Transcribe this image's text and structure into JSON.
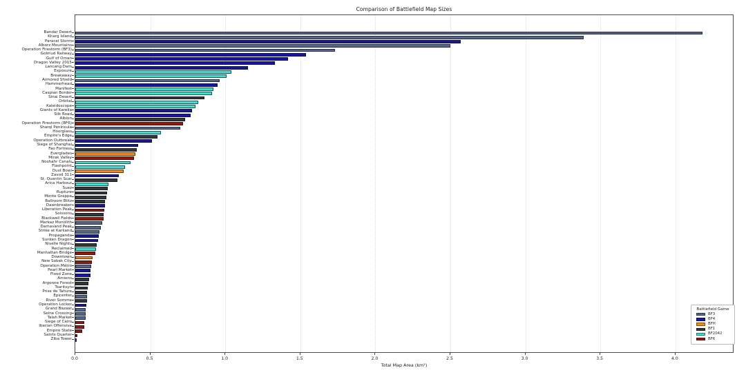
{
  "title": "Comparison of Battlefield Map Sizes",
  "game_colors": {
    "BF3": "#56688a",
    "BF4": "#17179c",
    "BFH": "#ef8b17",
    "BF1": "#32383a",
    "BF2042": "#40dfcd",
    "BF6": "#8e1c10"
  },
  "chart_data": {
    "type": "bar",
    "orientation": "horizontal",
    "title": "Comparison of Battlefield Map Sizes",
    "xlabel": "Total Map Area (km²)",
    "ylabel": "",
    "xlim": [
      0.0,
      4.39
    ],
    "xticks": [
      0.0,
      0.5,
      1.0,
      1.5,
      2.0,
      2.5,
      3.0,
      3.5,
      4.0
    ],
    "grid": "vertical dotted",
    "legend": {
      "title": "Battlefield Game",
      "position": "lower right",
      "entries": [
        {
          "label": "BF3",
          "color": "#56688a"
        },
        {
          "label": "BF4",
          "color": "#17179c"
        },
        {
          "label": "BFH",
          "color": "#ef8b17"
        },
        {
          "label": "BF1",
          "color": "#32383a"
        },
        {
          "label": "BF2042",
          "color": "#40dfcd"
        },
        {
          "label": "BF6",
          "color": "#8e1c10"
        }
      ]
    },
    "bars": [
      {
        "label": "Bandar Desert",
        "game": "BF3",
        "value": 4.18
      },
      {
        "label": "Kharg Island",
        "game": "BF3",
        "value": 3.39
      },
      {
        "label": "Paracel Storm",
        "game": "BF4",
        "value": 2.57
      },
      {
        "label": "Alborz Mountains",
        "game": "BF3",
        "value": 2.5
      },
      {
        "label": "Operation Firestorm (BF3)",
        "game": "BF3",
        "value": 1.73
      },
      {
        "label": "Golmud Railway",
        "game": "BF4",
        "value": 1.54
      },
      {
        "label": "Gulf of Oman",
        "game": "BF4",
        "value": 1.42
      },
      {
        "label": "Dragon Valley 2015",
        "game": "BF4",
        "value": 1.33
      },
      {
        "label": "Lancang Dam",
        "game": "BF4",
        "value": 1.15
      },
      {
        "label": "Exposure",
        "game": "BF2042",
        "value": 1.04
      },
      {
        "label": "Breakaway",
        "game": "BF2042",
        "value": 1.01
      },
      {
        "label": "Armored Shield",
        "game": "BF3",
        "value": 0.96
      },
      {
        "label": "Hammerhead",
        "game": "BF4",
        "value": 0.95
      },
      {
        "label": "Manifest",
        "game": "BF2042",
        "value": 0.92
      },
      {
        "label": "Caspian Border",
        "game": "BF2042",
        "value": 0.91
      },
      {
        "label": "Sinai Desert",
        "game": "BF1",
        "value": 0.86
      },
      {
        "label": "Orbital",
        "game": "BF2042",
        "value": 0.82
      },
      {
        "label": "Kaleidoscope",
        "game": "BF2042",
        "value": 0.8
      },
      {
        "label": "Giants of Karelia",
        "game": "BF4",
        "value": 0.78
      },
      {
        "label": "Silk Road",
        "game": "BF4",
        "value": 0.77
      },
      {
        "label": "Albion",
        "game": "BF1",
        "value": 0.73
      },
      {
        "label": "Operation Firestorm (BF6)",
        "game": "BF6",
        "value": 0.72
      },
      {
        "label": "Sharqi Peninsula",
        "game": "BF3",
        "value": 0.7
      },
      {
        "label": "Hourglass",
        "game": "BF2042",
        "value": 0.57
      },
      {
        "label": "Empire's Edge",
        "game": "BF1",
        "value": 0.55
      },
      {
        "label": "Operation Outbreak",
        "game": "BF4",
        "value": 0.51
      },
      {
        "label": "Siege of Shanghai",
        "game": "BF4",
        "value": 0.42
      },
      {
        "label": "Fao Fortress",
        "game": "BF1",
        "value": 0.41
      },
      {
        "label": "Everglades",
        "game": "BFH",
        "value": 0.4
      },
      {
        "label": "Mirak Valley",
        "game": "BF6",
        "value": 0.39
      },
      {
        "label": "Noshahr Canals",
        "game": "BF2042",
        "value": 0.37
      },
      {
        "label": "Flashpoint",
        "game": "BF2042",
        "value": 0.33
      },
      {
        "label": "Dust Bowl",
        "game": "BFH",
        "value": 0.32
      },
      {
        "label": "Zavod 311",
        "game": "BF4",
        "value": 0.29
      },
      {
        "label": "St. Quentin Scar",
        "game": "BF1",
        "value": 0.28
      },
      {
        "label": "Arica Harbour",
        "game": "BF2042",
        "value": 0.22
      },
      {
        "label": "Suez",
        "game": "BF1",
        "value": 0.215
      },
      {
        "label": "Rupture",
        "game": "BF1",
        "value": 0.21
      },
      {
        "label": "Monte Grappa",
        "game": "BF1",
        "value": 0.205
      },
      {
        "label": "Ballroom Blitz",
        "game": "BF1",
        "value": 0.2
      },
      {
        "label": "Dawnbreaker",
        "game": "BF4",
        "value": 0.198
      },
      {
        "label": "Liberation Peak",
        "game": "BF6",
        "value": 0.193
      },
      {
        "label": "Soissons",
        "game": "BF1",
        "value": 0.19
      },
      {
        "label": "Blackwell Fields",
        "game": "BF6",
        "value": 0.19
      },
      {
        "label": "Markaz Monolith",
        "game": "BF3",
        "value": 0.18
      },
      {
        "label": "Damavand Peak",
        "game": "BF3",
        "value": 0.172
      },
      {
        "label": "Strike at Karkand",
        "game": "BF3",
        "value": 0.16
      },
      {
        "label": "Propaganda",
        "game": "BF4",
        "value": 0.155
      },
      {
        "label": "Sunken Dragon",
        "game": "BF4",
        "value": 0.15
      },
      {
        "label": "Nivelle Nights",
        "game": "BF1",
        "value": 0.143
      },
      {
        "label": "Reclaimed",
        "game": "BF2042",
        "value": 0.138
      },
      {
        "label": "Manhattan Bridge",
        "game": "BF6",
        "value": 0.133
      },
      {
        "label": "Downtown",
        "game": "BFH",
        "value": 0.115
      },
      {
        "label": "New Sobek City",
        "game": "BF6",
        "value": 0.11
      },
      {
        "label": "Operation Métro",
        "game": "BF3",
        "value": 0.107
      },
      {
        "label": "Pearl Market",
        "game": "BF4",
        "value": 0.103
      },
      {
        "label": "Flood Zone",
        "game": "BF4",
        "value": 0.1
      },
      {
        "label": "Amiens",
        "game": "BF1",
        "value": 0.09
      },
      {
        "label": "Argonne Forest",
        "game": "BF1",
        "value": 0.086
      },
      {
        "label": "Tsaritsyn",
        "game": "BF1",
        "value": 0.082
      },
      {
        "label": "Prise de Tahure",
        "game": "BF1",
        "value": 0.08
      },
      {
        "label": "Epicenter",
        "game": "BF3",
        "value": 0.078
      },
      {
        "label": "River Somme",
        "game": "BF1",
        "value": 0.076
      },
      {
        "label": "Operation Locker",
        "game": "BF4",
        "value": 0.074
      },
      {
        "label": "Grand Bazaar",
        "game": "BF3",
        "value": 0.071
      },
      {
        "label": "Seine Crossing",
        "game": "BF3",
        "value": 0.069
      },
      {
        "label": "Talah Market",
        "game": "BF3",
        "value": 0.067
      },
      {
        "label": "Siege of Cairo",
        "game": "BF6",
        "value": 0.06
      },
      {
        "label": "Iberian Offensive",
        "game": "BF6",
        "value": 0.058
      },
      {
        "label": "Empire State",
        "game": "BF6",
        "value": 0.047
      },
      {
        "label": "Saints Quarter",
        "game": "BF6",
        "value": 0.014
      },
      {
        "label": "Ziba Tower",
        "game": "BF3",
        "value": 0.008
      }
    ]
  }
}
